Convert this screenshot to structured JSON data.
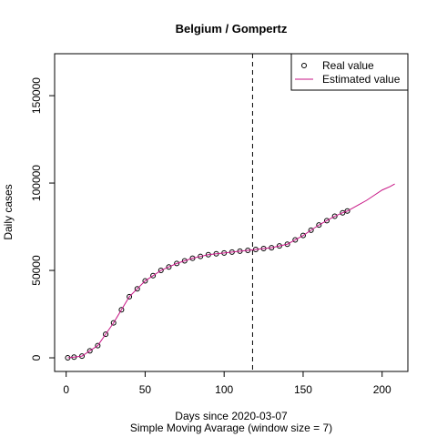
{
  "chart_data": {
    "type": "line",
    "title": "Belgium / Gompertz",
    "x_label": "Days since 2020-03-07",
    "subtitle": "Simple Moving Avarage (window size = 7)",
    "y_label": "Daily cases",
    "xlim": [
      -7.3,
      216.3
    ],
    "xticks": [
      0,
      50,
      100,
      150,
      200
    ],
    "ylim": [
      -7800,
      174000
    ],
    "yticks": [
      0,
      50000,
      100000,
      150000
    ],
    "vline": 118,
    "legend": "top-right",
    "series": [
      {
        "name": "Real value",
        "color": "#000000",
        "marker": "circle",
        "x": [
          1,
          5,
          10,
          15,
          20,
          25,
          30,
          35,
          40,
          45,
          50,
          55,
          60,
          65,
          70,
          75,
          80,
          85,
          90,
          95,
          100,
          105,
          110,
          115,
          120,
          125,
          130,
          135,
          140,
          145,
          150,
          155,
          160,
          165,
          170,
          175,
          178
        ],
        "values": [
          0,
          400,
          1000,
          4000,
          7000,
          13500,
          20000,
          27500,
          35000,
          39500,
          44000,
          47000,
          50000,
          52000,
          54000,
          55500,
          57000,
          58000,
          59000,
          59500,
          60000,
          60500,
          61000,
          61500,
          62000,
          62500,
          63000,
          64000,
          65000,
          67500,
          70000,
          73000,
          76000,
          78500,
          81000,
          83000,
          84000
        ]
      },
      {
        "name": "Estimated value",
        "color": "#c71585",
        "marker": "line",
        "x": [
          1,
          5,
          10,
          15,
          20,
          25,
          30,
          35,
          40,
          45,
          50,
          55,
          60,
          65,
          70,
          75,
          80,
          85,
          90,
          95,
          100,
          105,
          110,
          115,
          120,
          125,
          130,
          135,
          140,
          145,
          150,
          155,
          160,
          165,
          170,
          175,
          178,
          185,
          190,
          195,
          200,
          205,
          208
        ],
        "values": [
          0,
          400,
          1000,
          4000,
          7000,
          13500,
          20000,
          27500,
          35000,
          39500,
          44000,
          47000,
          50000,
          52000,
          54000,
          55500,
          57000,
          58000,
          59000,
          59500,
          60000,
          60500,
          61000,
          61500,
          62000,
          62500,
          63000,
          64000,
          65000,
          67500,
          70000,
          73000,
          76000,
          78500,
          81000,
          83000,
          84000,
          87500,
          90000,
          93000,
          96000,
          98000,
          99500
        ]
      }
    ]
  }
}
